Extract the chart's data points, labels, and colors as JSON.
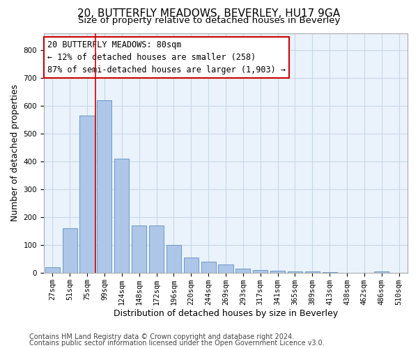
{
  "title_line1": "20, BUTTERFLY MEADOWS, BEVERLEY, HU17 9GA",
  "title_line2": "Size of property relative to detached houses in Beverley",
  "xlabel": "Distribution of detached houses by size in Beverley",
  "ylabel": "Number of detached properties",
  "categories": [
    "27sqm",
    "51sqm",
    "75sqm",
    "99sqm",
    "124sqm",
    "148sqm",
    "172sqm",
    "196sqm",
    "220sqm",
    "244sqm",
    "269sqm",
    "293sqm",
    "317sqm",
    "341sqm",
    "365sqm",
    "389sqm",
    "413sqm",
    "438sqm",
    "462sqm",
    "486sqm",
    "510sqm"
  ],
  "bar_values": [
    20,
    160,
    565,
    620,
    410,
    170,
    170,
    100,
    55,
    42,
    30,
    15,
    10,
    8,
    5,
    5,
    3,
    0,
    0,
    5,
    0
  ],
  "bar_color": "#aec6e8",
  "bar_edge_color": "#5a8fc0",
  "vline_color": "#cc0000",
  "annotation_text": "20 BUTTERFLY MEADOWS: 80sqm\n← 12% of detached houses are smaller (258)\n87% of semi-detached houses are larger (1,903) →",
  "annotation_box_color": "#ffffff",
  "annotation_box_edge": "#cc0000",
  "ylim": [
    0,
    860
  ],
  "yticks": [
    0,
    100,
    200,
    300,
    400,
    500,
    600,
    700,
    800
  ],
  "grid_color": "#c8d8e8",
  "bg_color": "#eaf2fb",
  "footer_line1": "Contains HM Land Registry data © Crown copyright and database right 2024.",
  "footer_line2": "Contains public sector information licensed under the Open Government Licence v3.0.",
  "title_fontsize": 11,
  "subtitle_fontsize": 9.5,
  "axis_label_fontsize": 9,
  "tick_fontsize": 7.5,
  "annotation_fontsize": 8.5,
  "footer_fontsize": 7
}
